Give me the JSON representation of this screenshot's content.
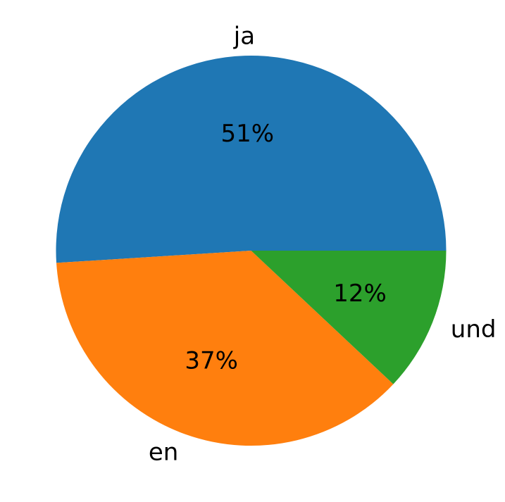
{
  "chart_data": {
    "type": "pie",
    "title": "",
    "start_angle_deg": 0,
    "direction": "counterclockwise",
    "slices": [
      {
        "label": "ja",
        "value": 51,
        "pct_label": "51%",
        "color": "#1f77b4"
      },
      {
        "label": "en",
        "value": 37,
        "pct_label": "37%",
        "color": "#ff7f0e"
      },
      {
        "label": "und",
        "value": 12,
        "pct_label": "12%",
        "color": "#2ca02c"
      }
    ]
  }
}
